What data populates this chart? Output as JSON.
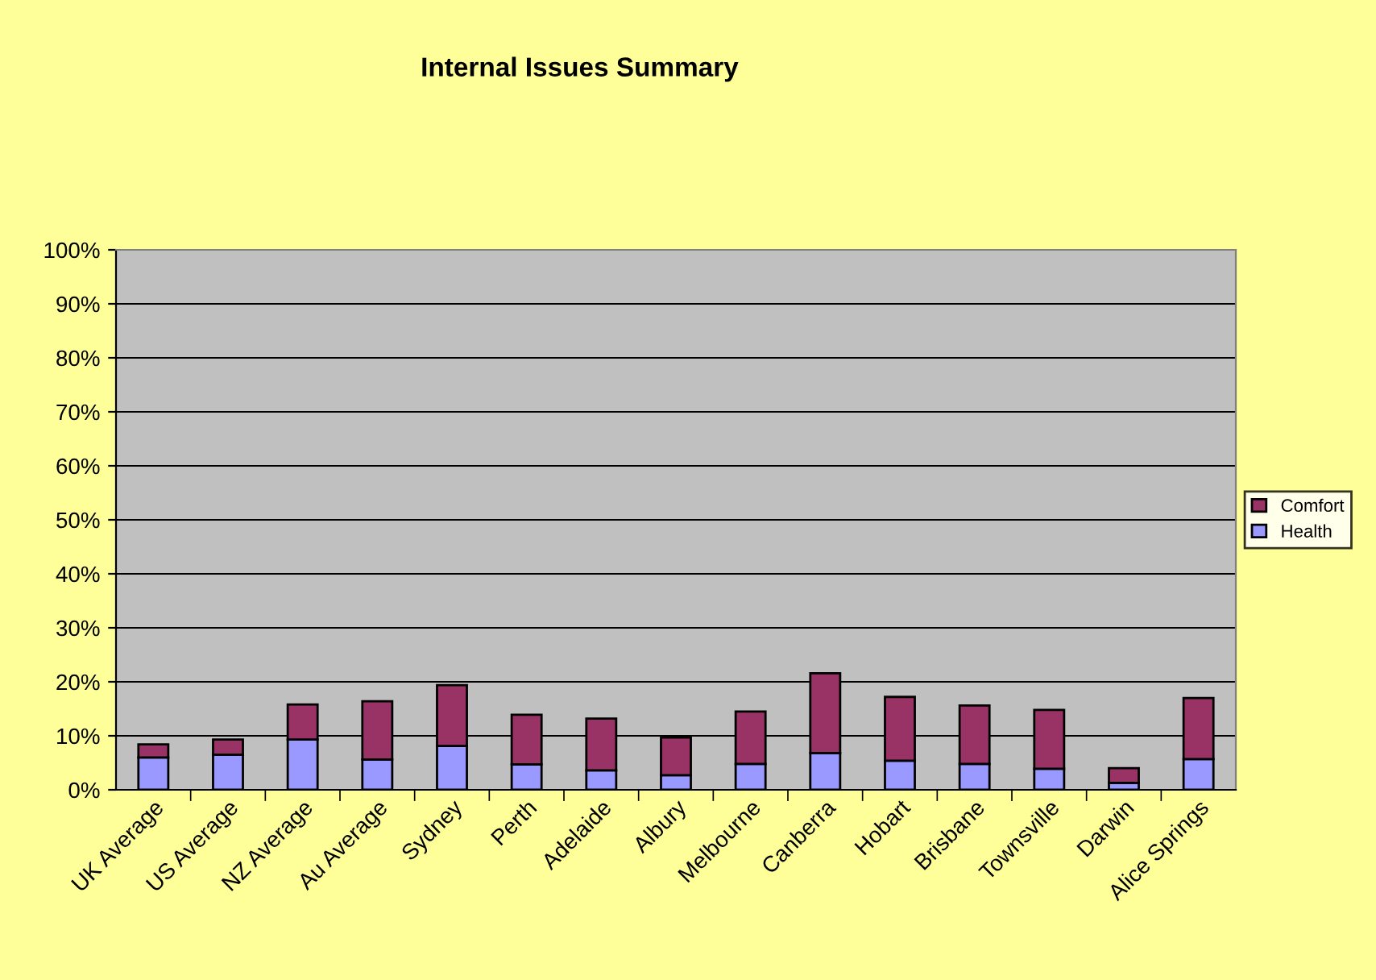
{
  "chart_data": {
    "type": "bar",
    "title": "Internal Issues Summary",
    "stacked": true,
    "categories": [
      "UK Average",
      "US Average",
      "NZ Average",
      "Au Average",
      "Sydney",
      "Perth",
      "Adelaide",
      "Albury",
      "Melbourne",
      "Canberra",
      "Hobart",
      "Brisbane",
      "Townsville",
      "Darwin",
      "Alice Springs"
    ],
    "series": [
      {
        "name": "Health",
        "color": "#9999ff",
        "values": [
          6.0,
          6.5,
          9.3,
          5.6,
          8.1,
          4.7,
          3.6,
          2.7,
          4.8,
          6.8,
          5.4,
          4.8,
          3.9,
          1.3,
          5.7
        ]
      },
      {
        "name": "Comfort",
        "color": "#993366",
        "values": [
          2.4,
          2.8,
          6.5,
          10.8,
          11.3,
          9.2,
          9.6,
          7.0,
          9.7,
          14.8,
          11.8,
          10.8,
          10.9,
          2.7,
          11.3
        ]
      }
    ],
    "ylim": [
      0,
      100
    ],
    "yticks": [
      {
        "value": 0,
        "label": "0%"
      },
      {
        "value": 10,
        "label": "10%"
      },
      {
        "value": 20,
        "label": "20%"
      },
      {
        "value": 30,
        "label": "30%"
      },
      {
        "value": 40,
        "label": "40%"
      },
      {
        "value": 50,
        "label": "50%"
      },
      {
        "value": 60,
        "label": "60%"
      },
      {
        "value": 70,
        "label": "70%"
      },
      {
        "value": 80,
        "label": "80%"
      },
      {
        "value": 90,
        "label": "90%"
      },
      {
        "value": 100,
        "label": "100%"
      }
    ],
    "grid": "y",
    "legend": "right"
  }
}
